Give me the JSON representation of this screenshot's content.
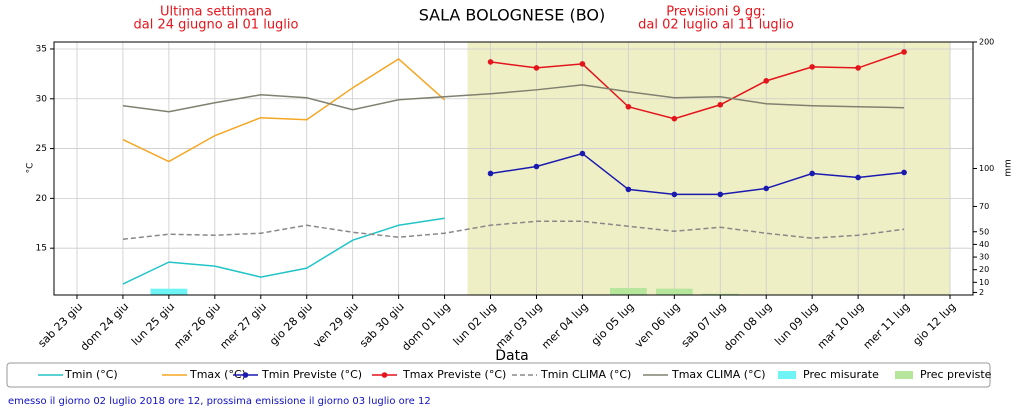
{
  "chart_data": {
    "type": "line",
    "title": "SALA BOLOGNESE (BO)",
    "annotations": [
      {
        "lines": [
          "Ultima settimana",
          "dal 24 giugno al 01 luglio"
        ],
        "color": "#e8141c"
      },
      {
        "lines": [
          "Previsioni 9 gg:",
          "dal 02 luglio al 11 luglio"
        ],
        "color": "#e8141c"
      }
    ],
    "xlabel": "Data",
    "ylabel": "°C",
    "y2label": "mm",
    "footer": "emesso il giorno 02 luglio 2018 ore 12, prossima emissione il giorno 03 luglio ore 12",
    "categories": [
      "sab 23 giu",
      "dom 24 giu",
      "lun 25 giu",
      "mar 26 giu",
      "mer 27 giu",
      "gio 28 giu",
      "ven 29 giu",
      "sab 30 giu",
      "dom 01 lug",
      "lun 02 lug",
      "mar 03 lug",
      "mer 04 lug",
      "gio 05 lug",
      "ven 06 lug",
      "sab 07 lug",
      "dom 08 lug",
      "lun 09 lug",
      "mar 10 lug",
      "mer 11 lug",
      "gio 12 lug"
    ],
    "series": [
      {
        "name": "Tmin (°C)",
        "color": "#22c4c8",
        "values": [
          null,
          11.4,
          13.6,
          13.2,
          12.1,
          13.0,
          15.8,
          17.3,
          18.0,
          null,
          null,
          null,
          null,
          null,
          null,
          null,
          null,
          null,
          null,
          null
        ]
      },
      {
        "name": "Tmax (°C)",
        "color": "#f5a623",
        "values": [
          null,
          25.9,
          23.7,
          26.3,
          28.1,
          27.9,
          31.1,
          34.0,
          29.9,
          null,
          null,
          null,
          null,
          null,
          null,
          null,
          null,
          null,
          null,
          null
        ]
      },
      {
        "name": "Tmin Previste (°C)",
        "color": "#1a1ab0",
        "marker": true,
        "values": [
          null,
          null,
          null,
          null,
          null,
          null,
          null,
          null,
          null,
          22.5,
          23.2,
          24.5,
          20.9,
          20.4,
          20.4,
          21.0,
          22.5,
          22.1,
          22.6,
          null
        ]
      },
      {
        "name": "Tmax Previste (°C)",
        "color": "#e3141c",
        "marker": true,
        "values": [
          null,
          null,
          null,
          null,
          null,
          null,
          null,
          null,
          null,
          33.7,
          33.1,
          33.5,
          29.2,
          28.0,
          29.4,
          31.8,
          33.2,
          33.1,
          34.7,
          null
        ]
      },
      {
        "name": "Tmin CLIMA (°C)",
        "color": "#888888",
        "dash": true,
        "values": [
          null,
          15.9,
          16.4,
          16.3,
          16.5,
          17.3,
          16.6,
          16.1,
          16.5,
          17.3,
          17.7,
          17.7,
          17.2,
          16.7,
          17.1,
          16.5,
          16.0,
          16.3,
          16.9,
          null
        ]
      },
      {
        "name": "Tmax CLIMA (°C)",
        "color": "#808070",
        "values": [
          null,
          29.3,
          28.7,
          29.6,
          30.4,
          30.1,
          28.9,
          29.9,
          30.2,
          30.5,
          30.9,
          31.4,
          30.7,
          30.1,
          30.2,
          29.5,
          29.3,
          29.2,
          29.1,
          null
        ]
      },
      {
        "name": "Prec misurate",
        "color": "#6ff4f6",
        "bar": true,
        "axis": "y2",
        "values": [
          null,
          null,
          5,
          null,
          null,
          null,
          null,
          null,
          null,
          null,
          null,
          null,
          null,
          null,
          null,
          null,
          null,
          null,
          null,
          null
        ]
      },
      {
        "name": "Prec previste",
        "color": "#b6e69c",
        "bar": true,
        "axis": "y2",
        "values": [
          null,
          null,
          null,
          null,
          null,
          null,
          null,
          null,
          null,
          null,
          null,
          null,
          5.5,
          5,
          1,
          null,
          null,
          null,
          null,
          null
        ]
      }
    ],
    "ylim": [
      10.3,
      35.7
    ],
    "yticks": [
      15,
      20,
      25,
      30,
      35
    ],
    "y2lim": [
      0,
      200
    ],
    "y2ticks": [
      2,
      10,
      20,
      30,
      40,
      50,
      70,
      100,
      200
    ],
    "grid": true,
    "forecast_shade": "#efefc6"
  }
}
